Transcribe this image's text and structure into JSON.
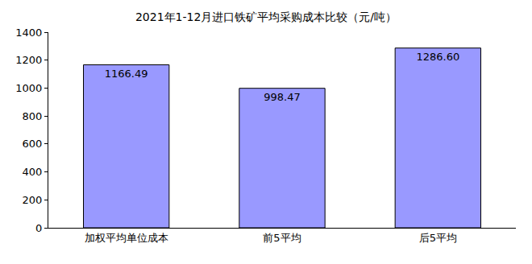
{
  "chart_data": {
    "type": "bar",
    "title": "2021年1-12月进口铁矿平均采购成本比较（元/吨）",
    "categories": [
      "加权平均单位成本",
      "前5平均",
      "后5平均"
    ],
    "values": [
      1166.49,
      998.47,
      1286.6
    ],
    "value_labels": [
      "1166.49",
      "998.47",
      "1286.60"
    ],
    "color": "#9999ff",
    "ylim": [
      0,
      1400
    ],
    "yticks": [
      0,
      200,
      400,
      600,
      800,
      1000,
      1200,
      1400
    ],
    "grid": false,
    "data_labels": true
  }
}
